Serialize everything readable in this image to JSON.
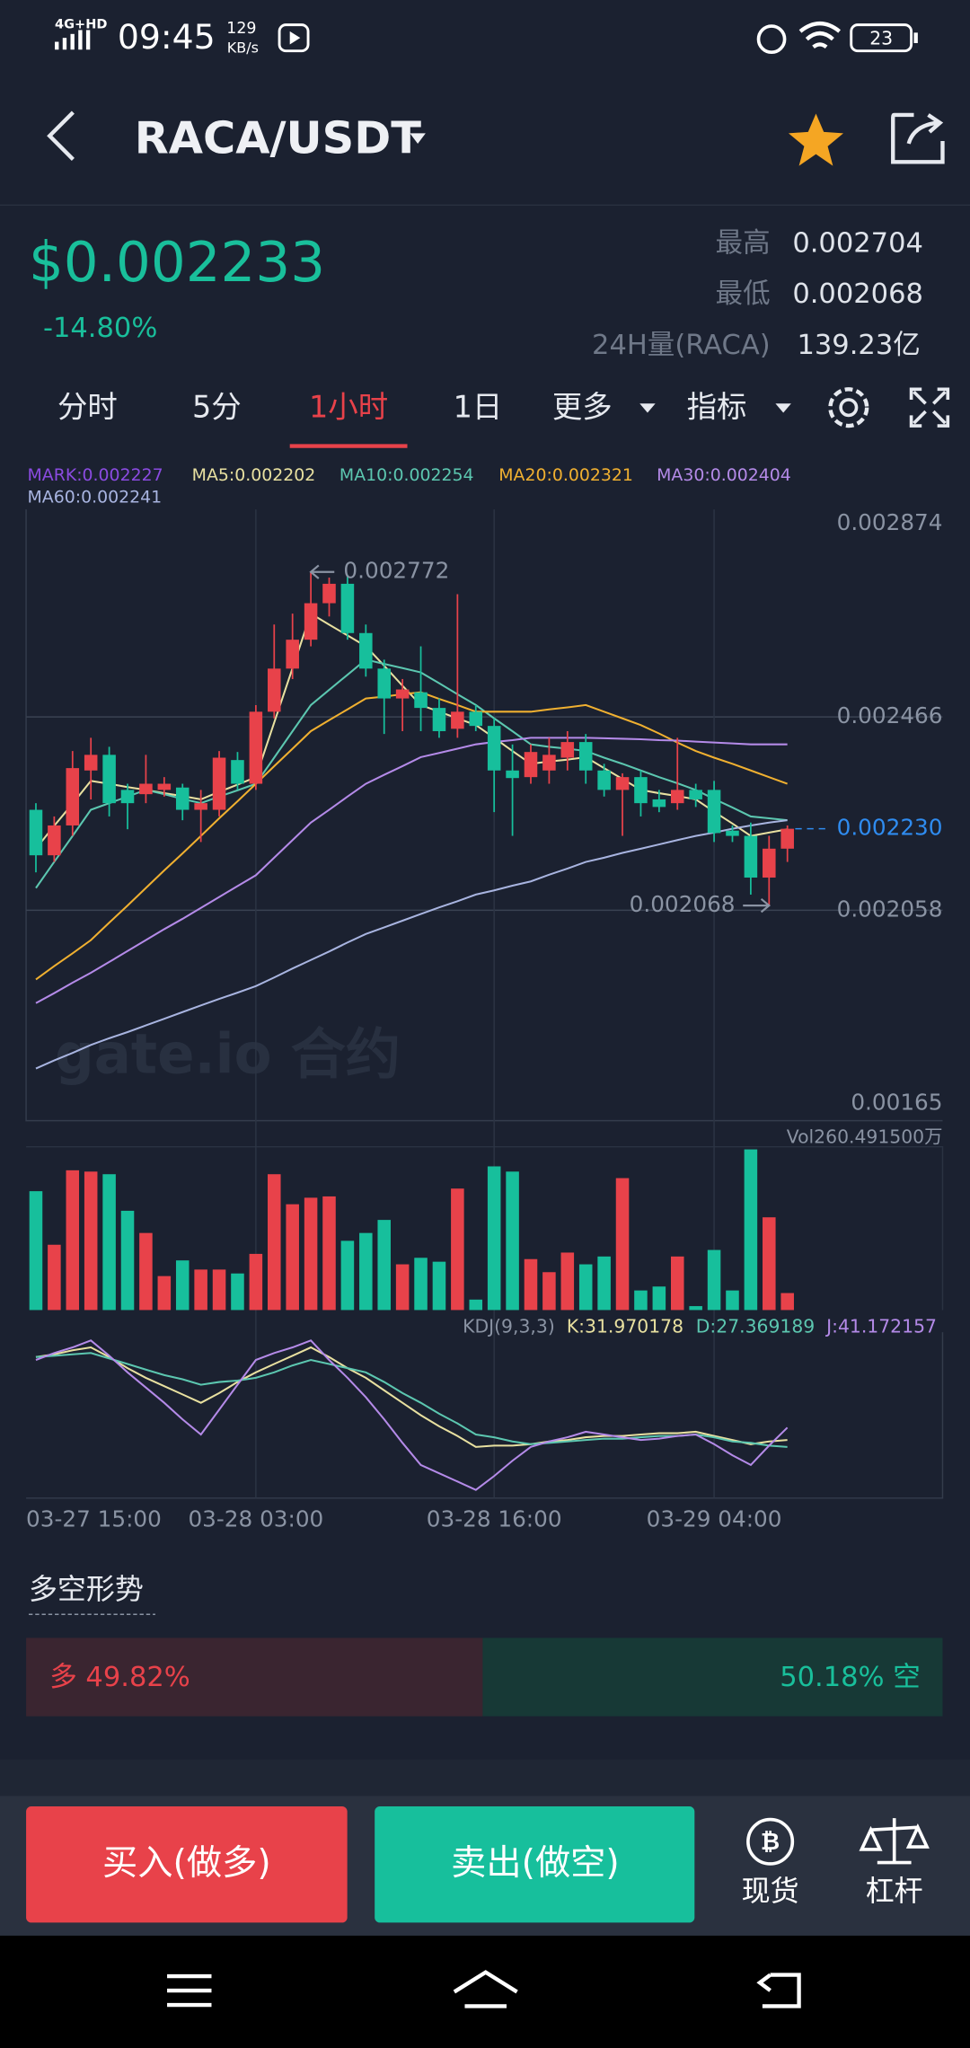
{
  "status_bar": {
    "network": "4G+HD",
    "time": "09:45",
    "speed": "129",
    "speed_unit": "KB/s",
    "battery": "23"
  },
  "header": {
    "pair": "RACA/USDT"
  },
  "ticker": {
    "price": "$0.002233",
    "change": "-14.80%",
    "high_label": "最高",
    "high": "0.002704",
    "low_label": "最低",
    "low": "0.002068",
    "volume_label": "24H量(RACA)",
    "volume": "139.23亿"
  },
  "tabs": [
    "分时",
    "5分",
    "1小时",
    "1日",
    "更多",
    "指标"
  ],
  "mark_label": "MARK:0.002227",
  "watermark": "gate.io 合约",
  "chart_data": [
    {
      "type": "candlestick",
      "up_color": "#e8424a",
      "down_color": "#17bf9c",
      "categories": [
        "03-27 15:00",
        null,
        null,
        null,
        null,
        null,
        null,
        null,
        null,
        null,
        null,
        null,
        "03-28 03:00",
        null,
        null,
        null,
        null,
        null,
        null,
        null,
        null,
        null,
        null,
        null,
        null,
        "03-28 16:00",
        null,
        null,
        null,
        null,
        null,
        null,
        null,
        null,
        null,
        null,
        null,
        "03-29 04:00",
        null,
        null,
        null,
        null
      ],
      "open": [
        0.00227,
        0.002174,
        0.002237,
        0.002353,
        0.002386,
        0.002312,
        0.002303,
        0.002312,
        0.002317,
        0.00227,
        0.00227,
        0.002375,
        0.002325,
        0.002477,
        0.002568,
        0.002629,
        0.002706,
        0.002747,
        0.002643,
        0.002568,
        0.002505,
        0.002518,
        0.002485,
        0.002441,
        0.002477,
        0.002447,
        0.002353,
        0.002339,
        0.002353,
        0.00238,
        0.002413,
        0.002353,
        0.002312,
        0.002339,
        0.002292,
        0.002284,
        0.002312,
        0.002312,
        0.002226,
        0.002215,
        0.002127,
        0.002188
      ],
      "high": [
        0.002284,
        0.002256,
        0.002394,
        0.002422,
        0.002403,
        0.002325,
        0.002386,
        0.002339,
        0.002325,
        0.002312,
        0.002394,
        0.002392,
        0.002491,
        0.002661,
        0.002684,
        0.002772,
        0.00276,
        0.002766,
        0.002661,
        0.002587,
        0.002546,
        0.002615,
        0.002505,
        0.002725,
        0.002491,
        0.002463,
        0.002408,
        0.002408,
        0.002422,
        0.002436,
        0.00243,
        0.002367,
        0.002347,
        0.002353,
        0.002312,
        0.002422,
        0.002325,
        0.002331,
        0.002237,
        0.002243,
        0.002215,
        0.002237
      ],
      "low": [
        0.002138,
        0.00216,
        0.002215,
        0.002292,
        0.002256,
        0.002229,
        0.002284,
        0.002298,
        0.002248,
        0.002202,
        0.002256,
        0.002312,
        0.002312,
        0.002463,
        0.002546,
        0.002615,
        0.002678,
        0.002629,
        0.002551,
        0.00243,
        0.002436,
        0.002436,
        0.002422,
        0.002422,
        0.002436,
        0.002265,
        0.002215,
        0.002325,
        0.002325,
        0.002353,
        0.002325,
        0.002298,
        0.002215,
        0.002256,
        0.002265,
        0.00227,
        0.002276,
        0.002202,
        0.002202,
        0.002091,
        0.002068,
        0.00216
      ],
      "close": [
        0.002174,
        0.002237,
        0.002358,
        0.002386,
        0.002284,
        0.002284,
        0.002325,
        0.002325,
        0.00227,
        0.002284,
        0.00238,
        0.002325,
        0.002477,
        0.002568,
        0.002629,
        0.002706,
        0.002747,
        0.002643,
        0.002568,
        0.002505,
        0.002524,
        0.002485,
        0.002436,
        0.002477,
        0.002447,
        0.002353,
        0.002337,
        0.002392,
        0.002386,
        0.002413,
        0.002353,
        0.002312,
        0.002339,
        0.002284,
        0.002276,
        0.002312,
        0.002292,
        0.002221,
        0.002215,
        0.002127,
        0.002188,
        0.00223
      ],
      "series": [
        {
          "name": "MA5:0.002202",
          "color": "#e8e0a0",
          "values": [
            0.002188,
            0.002236,
            0.002283,
            0.002331,
            0.002325,
            0.002318,
            0.002312,
            0.002305,
            0.002299,
            0.002292,
            0.002308,
            0.002323,
            0.002339,
            0.002454,
            0.002569,
            0.002684,
            0.002661,
            0.002638,
            0.002615,
            0.002574,
            0.002532,
            0.002491,
            0.002477,
            0.002463,
            0.002449,
            0.002422,
            0.002394,
            0.002367,
            0.002372,
            0.002376,
            0.002381,
            0.002358,
            0.002335,
            0.002312,
            0.002305,
            0.002299,
            0.002292,
            0.002266,
            0.002241,
            0.002215,
            0.002222,
            0.002229
          ]
        },
        {
          "name": "MA10:0.002254",
          "color": "#5cc7b0",
          "values": [
            0.002105,
            0.00216,
            0.002215,
            0.00227,
            0.002284,
            0.002298,
            0.002312,
            0.002303,
            0.002293,
            0.002284,
            0.002298,
            0.002311,
            0.002325,
            0.00238,
            0.002436,
            0.002491,
            0.002523,
            0.002555,
            0.002587,
            0.002578,
            0.002569,
            0.00256,
            0.002537,
            0.002514,
            0.002491,
            0.002463,
            0.002436,
            0.002408,
            0.002403,
            0.002399,
            0.002394,
            0.00238,
            0.002367,
            0.002353,
            0.002339,
            0.002326,
            0.002312,
            0.002293,
            0.002275,
            0.002256,
            0.002252,
            0.002248
          ]
        },
        {
          "name": "MA20:0.002321",
          "color": "#f0b030",
          "values": [
            0.001912,
            0.00194,
            0.001967,
            0.001995,
            0.002032,
            0.002068,
            0.002105,
            0.002142,
            0.002178,
            0.002215,
            0.002252,
            0.002288,
            0.002325,
            0.002362,
            0.002399,
            0.002436,
            0.002459,
            0.002482,
            0.002505,
            0.002509,
            0.002514,
            0.002518,
            0.002504,
            0.002491,
            0.002477,
            0.002477,
            0.002477,
            0.002477,
            0.002482,
            0.002486,
            0.002491,
            0.002477,
            0.002463,
            0.002449,
            0.002431,
            0.002412,
            0.002394,
            0.00238,
            0.002367,
            0.002353,
            0.002339,
            0.002325
          ]
        },
        {
          "name": "MA30:0.002404",
          "color": "#b48ae8",
          "values": [
            0.001862,
            0.001883,
            0.001905,
            0.001926,
            0.001949,
            0.001972,
            0.001995,
            0.002018,
            0.00204,
            0.002063,
            0.002086,
            0.002109,
            0.002132,
            0.002169,
            0.002206,
            0.002243,
            0.00227,
            0.002298,
            0.002325,
            0.002344,
            0.002362,
            0.002381,
            0.00239,
            0.002399,
            0.002408,
            0.002413,
            0.002417,
            0.002422,
            0.002422,
            0.002422,
            0.002422,
            0.002421,
            0.00242,
            0.002419,
            0.002417,
            0.002416,
            0.002414,
            0.002412,
            0.00241,
            0.002408,
            0.002408,
            0.002408
          ]
        },
        {
          "name": "MA60:0.002241",
          "color": "#a8b4e0",
          "values": [
            0.001724,
            0.001741,
            0.001757,
            0.001774,
            0.001788,
            0.001801,
            0.001815,
            0.001829,
            0.001843,
            0.001857,
            0.001871,
            0.001884,
            0.001898,
            0.001916,
            0.001935,
            0.001953,
            0.001971,
            0.00199,
            0.002008,
            0.002022,
            0.002036,
            0.00205,
            0.002064,
            0.002077,
            0.002091,
            0.0021,
            0.00211,
            0.002119,
            0.002133,
            0.002146,
            0.00216,
            0.002169,
            0.002179,
            0.002188,
            0.002197,
            0.002206,
            0.002215,
            0.002222,
            0.00223,
            0.002237,
            0.002243,
            0.002248
          ]
        }
      ],
      "ylim": [
        0.001614,
        0.002904
      ],
      "yticks": [
        0.002874,
        0.002466,
        0.002058,
        0.00165
      ],
      "grid": true,
      "last_price": {
        "value": 0.00223,
        "label": "0.002230"
      },
      "high_mark": 0.002772,
      "low_mark": 0.002068
    },
    {
      "type": "bar",
      "title": "Vol260.491500万",
      "values": [
        91,
        50,
        107,
        106,
        104,
        76,
        59,
        26,
        38,
        31,
        31,
        28,
        43,
        104,
        81,
        86,
        87,
        53,
        59,
        69,
        35,
        40,
        37,
        93,
        8,
        110,
        106,
        39,
        29,
        44,
        35,
        41,
        101,
        15,
        18,
        41,
        3,
        46,
        15,
        123,
        71,
        13
      ],
      "ylim": [
        0,
        125
      ]
    },
    {
      "type": "line",
      "title": "KDJ(9,3,3)",
      "ylim": [
        -10,
        110
      ],
      "series": [
        {
          "name": "K:31.970178",
          "color": "#e8e0a0",
          "values": [
            92,
            94,
            97,
            99,
            92,
            84,
            77,
            71,
            65,
            59,
            66,
            74,
            81,
            87,
            93,
            99,
            92,
            84,
            77,
            68,
            59,
            50,
            42,
            35,
            27,
            28,
            28,
            29,
            31,
            32,
            34,
            35,
            35,
            36,
            37,
            37,
            38,
            35,
            32,
            29,
            31,
            32
          ]
        },
        {
          "name": "D:27.369189",
          "color": "#5cc7b0",
          "values": [
            92,
            93,
            94,
            95,
            91,
            87,
            83,
            79,
            76,
            72,
            74,
            75,
            77,
            81,
            86,
            90,
            87,
            84,
            81,
            74,
            66,
            59,
            51,
            44,
            36,
            34,
            31,
            29,
            30,
            31,
            32,
            33,
            33,
            34,
            35,
            35,
            36,
            34,
            31,
            30,
            28,
            27
          ]
        },
        {
          "name": "J:41.172157",
          "color": "#b48ae8",
          "values": [
            90,
            95,
            99,
            104,
            93,
            81,
            70,
            59,
            47,
            36,
            54,
            72,
            90,
            95,
            99,
            104,
            90,
            77,
            63,
            47,
            30,
            14,
            8,
            2,
            -4,
            6,
            17,
            27,
            31,
            34,
            38,
            36,
            34,
            32,
            33,
            35,
            36,
            29,
            21,
            14,
            28,
            41
          ]
        }
      ]
    }
  ],
  "long_short": {
    "title": "多空形势",
    "values": [
      49.82,
      50.18
    ],
    "value_labels": [
      "多 49.82%",
      "50.18% 空"
    ],
    "colors": [
      "#3a2530",
      "#173936"
    ]
  },
  "actions": {
    "buy": "买入(做多)",
    "sell": "卖出(做空)",
    "spot": "现货",
    "margin": "杠杆"
  }
}
